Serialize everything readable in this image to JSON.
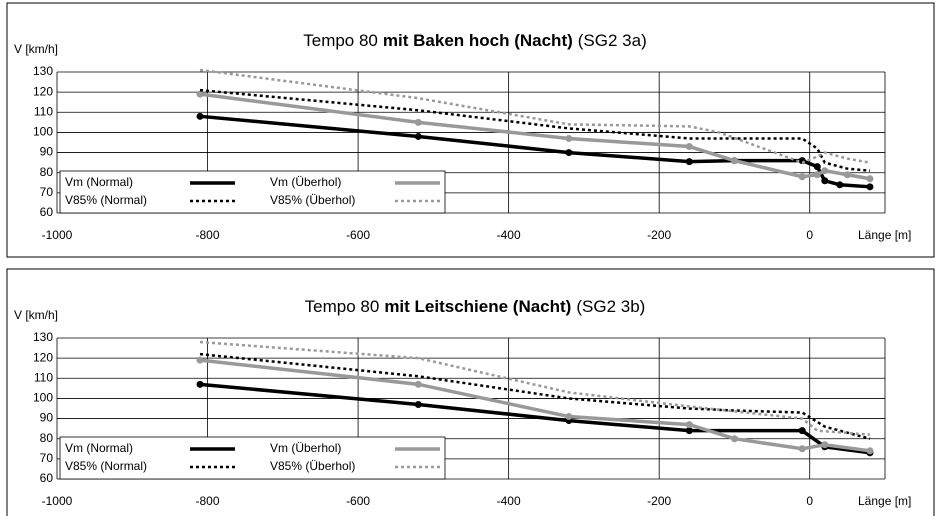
{
  "chart_data": [
    {
      "type": "line",
      "title": [
        "Tempo 80",
        "mit Baken hoch (Nacht)",
        "(SG2 3a)"
      ],
      "y_label": "V [km/h]",
      "x_label": "Länge [m]",
      "xlim": [
        -1000,
        100
      ],
      "xticks": [
        -1000,
        -800,
        -600,
        -400,
        -200,
        0
      ],
      "ylim": [
        60,
        130
      ],
      "yticks": [
        60,
        70,
        80,
        90,
        100,
        110,
        120,
        130
      ],
      "grid": true,
      "legend": "lower left",
      "series": [
        {
          "name": "Vm (Normal)",
          "color": "#000000",
          "dashed": false,
          "x": [
            -810,
            -520,
            -320,
            -160,
            -100,
            -10,
            10,
            20,
            40,
            80
          ],
          "values": [
            108,
            98,
            90,
            85.5,
            86,
            86,
            83,
            76,
            74,
            73
          ]
        },
        {
          "name": "Vm (Überhol)",
          "color": "#999999",
          "dashed": false,
          "x": [
            -810,
            -520,
            -320,
            -160,
            -100,
            -10,
            10,
            20,
            50,
            80
          ],
          "values": [
            119,
            105,
            97,
            93,
            86,
            78,
            79,
            81,
            79,
            77
          ]
        },
        {
          "name": "V85% (Normal)",
          "color": "#000000",
          "dashed": true,
          "x": [
            -810,
            -520,
            -320,
            -160,
            -100,
            -10,
            10,
            20,
            50,
            80
          ],
          "values": [
            121,
            111,
            102,
            97,
            97,
            97,
            92,
            85,
            82,
            81
          ]
        },
        {
          "name": "V85% (Überhol)",
          "color": "#999999",
          "dashed": true,
          "x": [
            -810,
            -520,
            -320,
            -160,
            -120,
            -10,
            10,
            20,
            50,
            80
          ],
          "values": [
            131,
            117,
            104,
            103,
            100,
            85,
            88,
            90,
            87,
            85
          ]
        }
      ]
    },
    {
      "type": "line",
      "title": [
        "Tempo 80",
        "mit Leitschiene (Nacht)",
        "(SG2 3b)"
      ],
      "y_label": "V [km/h]",
      "x_label": "Länge [m]",
      "xlim": [
        -1000,
        100
      ],
      "xticks": [
        -1000,
        -800,
        -600,
        -400,
        -200,
        0
      ],
      "ylim": [
        60,
        130
      ],
      "yticks": [
        60,
        70,
        80,
        90,
        100,
        110,
        120,
        130
      ],
      "grid": true,
      "legend": "lower left",
      "series": [
        {
          "name": "Vm (Normal)",
          "color": "#000000",
          "dashed": false,
          "x": [
            -810,
            -520,
            -320,
            -160,
            -10,
            20,
            80
          ],
          "values": [
            107,
            97,
            89,
            84,
            84,
            76,
            73
          ]
        },
        {
          "name": "Vm (Überhol)",
          "color": "#999999",
          "dashed": false,
          "x": [
            -810,
            -520,
            -320,
            -160,
            -100,
            -10,
            20,
            80
          ],
          "values": [
            119,
            107,
            91,
            87,
            80,
            75,
            77,
            74
          ]
        },
        {
          "name": "V85% (Normal)",
          "color": "#000000",
          "dashed": true,
          "x": [
            -810,
            -520,
            -320,
            -160,
            -100,
            -10,
            20,
            80
          ],
          "values": [
            122,
            111,
            100,
            95,
            94,
            93,
            86,
            80
          ]
        },
        {
          "name": "V85% (Überhol)",
          "color": "#999999",
          "dashed": true,
          "x": [
            -810,
            -520,
            -320,
            -160,
            -10,
            10,
            80
          ],
          "values": [
            128,
            120,
            103,
            96,
            90,
            84,
            82
          ]
        }
      ]
    }
  ]
}
